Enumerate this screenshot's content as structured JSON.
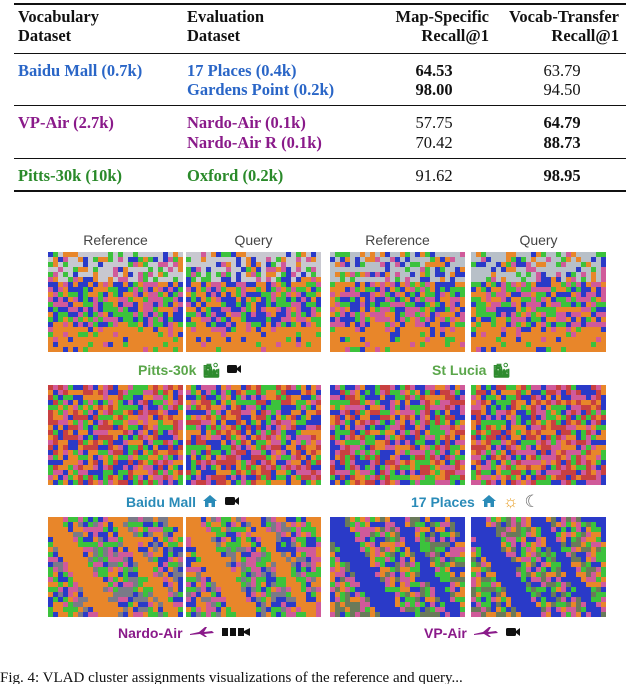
{
  "table": {
    "headers": {
      "vocab": [
        "Vocabulary",
        "Dataset"
      ],
      "eval": [
        "Evaluation",
        "Dataset"
      ],
      "map": [
        "Map-Specific",
        "Recall@1"
      ],
      "transfer": [
        "Vocab-Transfer",
        "Recall@1"
      ]
    },
    "groups": [
      {
        "vocab": "Baidu Mall (0.7k)",
        "color": "#2a66c7",
        "rows": [
          {
            "eval": "17 Places (0.4k)",
            "map": "64.53",
            "map_bold": true,
            "transfer": "63.79",
            "transfer_bold": false
          },
          {
            "eval": "Gardens Point (0.2k)",
            "map": "98.00",
            "map_bold": true,
            "transfer": "94.50",
            "transfer_bold": false
          }
        ]
      },
      {
        "vocab": "VP-Air (2.7k)",
        "color": "#8a1a8a",
        "rows": [
          {
            "eval": "Nardo-Air (0.1k)",
            "map": "57.75",
            "map_bold": false,
            "transfer": "64.79",
            "transfer_bold": true
          },
          {
            "eval": "Nardo-Air R (0.1k)",
            "map": "70.42",
            "map_bold": false,
            "transfer": "88.73",
            "transfer_bold": true
          }
        ]
      },
      {
        "vocab": "Pitts-30k (10k)",
        "color": "#2a8a2a",
        "rows": [
          {
            "eval": "Oxford (0.2k)",
            "map": "91.62",
            "map_bold": false,
            "transfer": "98.95",
            "transfer_bold": true
          }
        ]
      }
    ]
  },
  "figure": {
    "col_headers": [
      "Reference",
      "Query",
      "Reference",
      "Query"
    ],
    "captions": [
      {
        "label": "Pitts-30k",
        "color": "#5aa64a",
        "icons": [
          "city-icon",
          "camera-icon"
        ]
      },
      {
        "label": "St Lucia",
        "color": "#5aa64a",
        "icons": [
          "city-icon"
        ]
      },
      {
        "label": "Baidu Mall",
        "color": "#2a8bb8",
        "icons": [
          "home-icon",
          "camera-icon"
        ]
      },
      {
        "label": "17 Places",
        "color": "#2a8bb8",
        "icons": [
          "home-icon",
          "sun-icon",
          "moon-icon"
        ]
      },
      {
        "label": "Nardo-Air",
        "color": "#8a1a8a",
        "icons": [
          "plane-icon",
          "film-icon"
        ]
      },
      {
        "label": "VP-Air",
        "color": "#8a1a8a",
        "icons": [
          "plane-icon",
          "camera-icon"
        ]
      }
    ],
    "icon_glyphs": {
      "city-icon": "🏙",
      "camera-icon": "📹",
      "home-icon": "⌂",
      "sun-icon": "☼",
      "moon-icon": "☾",
      "plane-icon": "✈",
      "film-icon": "▮▮▮"
    },
    "caption_text": "Fig. 4: VLAD cluster assignments visualizations of the reference and query..."
  }
}
